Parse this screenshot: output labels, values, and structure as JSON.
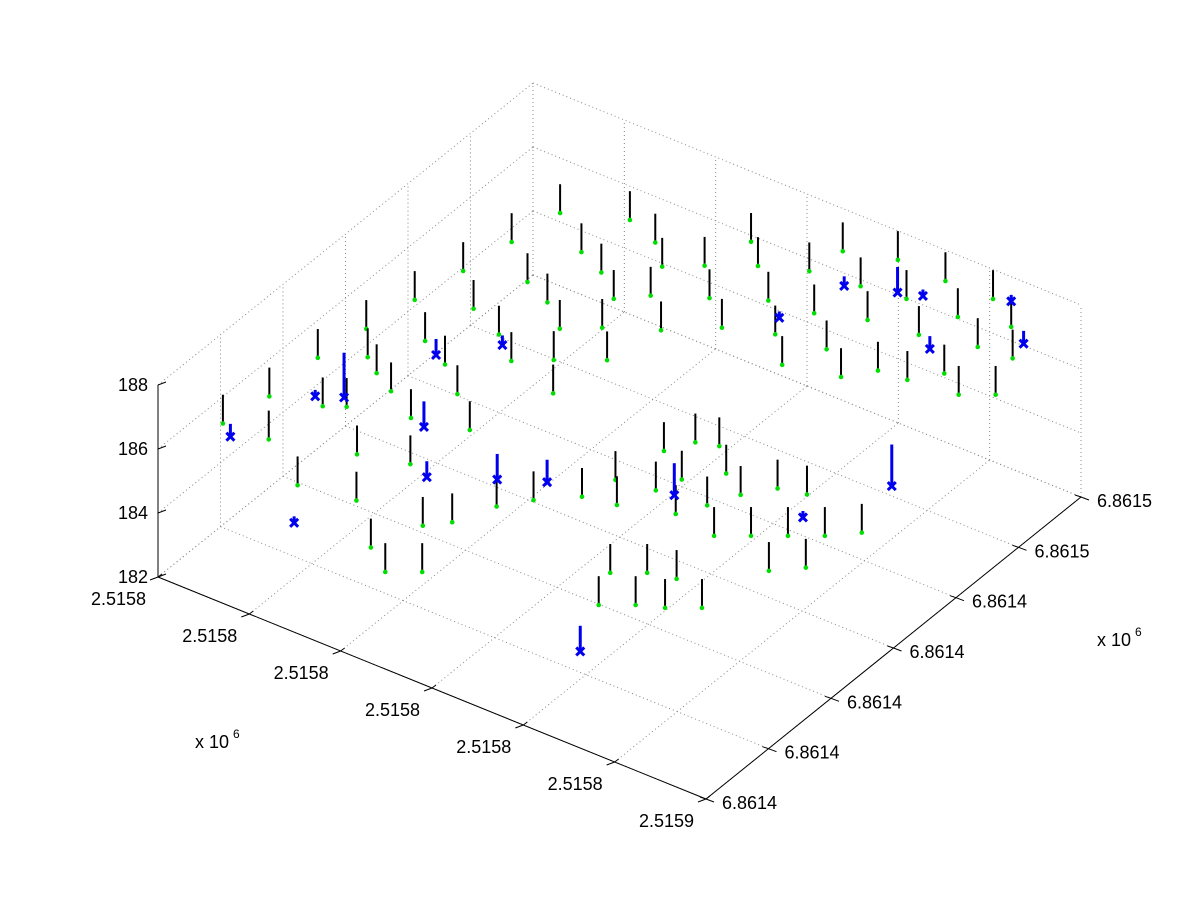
{
  "chart_data": {
    "type": "scatter",
    "title": "",
    "axes": {
      "x": {
        "ticks": [
          "2.5158",
          "2.5158",
          "2.5158",
          "2.5158",
          "2.5158",
          "2.5158",
          "2.5159"
        ],
        "multiplier_base": "x 10",
        "multiplier_exp": "6"
      },
      "y": {
        "ticks": [
          "6.8614",
          "6.8614",
          "6.8614",
          "6.8614",
          "6.8614",
          "6.8615",
          "6.8615"
        ],
        "multiplier_base": "x 10",
        "multiplier_exp": "6"
      },
      "z": {
        "ticks": [
          "182",
          "184",
          "186",
          "188"
        ],
        "range": [
          182,
          188
        ]
      }
    },
    "grid": true,
    "colors": {
      "stem": "#000000",
      "point": "#00dd00",
      "outlier": "#0000ee"
    },
    "series": [
      {
        "marker": "green-dot",
        "points_uv": [
          [
            0.05,
            0.1,
            186.2
          ],
          [
            0.08,
            0.18,
            186.5
          ],
          [
            0.1,
            0.28,
            186.9
          ],
          [
            0.12,
            0.38,
            187.0
          ],
          [
            0.14,
            0.48,
            187.1
          ],
          [
            0.16,
            0.58,
            187.2
          ],
          [
            0.18,
            0.68,
            187.3
          ],
          [
            0.2,
            0.78,
            187.4
          ],
          [
            0.12,
            0.12,
            186.0
          ],
          [
            0.15,
            0.22,
            186.3
          ],
          [
            0.18,
            0.32,
            186.6
          ],
          [
            0.2,
            0.42,
            186.8
          ],
          [
            0.22,
            0.52,
            187.0
          ],
          [
            0.25,
            0.62,
            187.1
          ],
          [
            0.28,
            0.72,
            187.3
          ],
          [
            0.3,
            0.82,
            187.5
          ],
          [
            0.2,
            0.08,
            185.5
          ],
          [
            0.24,
            0.18,
            185.8
          ],
          [
            0.27,
            0.28,
            186.2
          ],
          [
            0.3,
            0.36,
            186.4
          ],
          [
            0.33,
            0.46,
            186.7
          ],
          [
            0.35,
            0.56,
            186.9
          ],
          [
            0.38,
            0.66,
            187.1
          ],
          [
            0.4,
            0.76,
            187.3
          ],
          [
            0.28,
            0.12,
            185.2
          ],
          [
            0.31,
            0.22,
            185.6
          ],
          [
            0.35,
            0.32,
            186.0
          ],
          [
            0.42,
            0.44,
            186.5
          ],
          [
            0.45,
            0.54,
            186.8
          ],
          [
            0.48,
            0.64,
            187.0
          ],
          [
            0.5,
            0.74,
            187.2
          ],
          [
            0.52,
            0.84,
            187.4
          ],
          [
            0.55,
            0.7,
            187.0
          ],
          [
            0.58,
            0.78,
            187.3
          ],
          [
            0.6,
            0.86,
            187.6
          ],
          [
            0.62,
            0.92,
            187.8
          ],
          [
            0.65,
            0.8,
            187.2
          ],
          [
            0.68,
            0.88,
            187.5
          ],
          [
            0.7,
            0.95,
            187.8
          ],
          [
            0.72,
            0.84,
            187.1
          ],
          [
            0.75,
            0.9,
            187.4
          ],
          [
            0.78,
            0.96,
            187.6
          ],
          [
            0.8,
            0.86,
            187.0
          ],
          [
            0.83,
            0.92,
            187.2
          ],
          [
            0.86,
            0.97,
            187.5
          ],
          [
            0.88,
            0.9,
            186.8
          ],
          [
            0.9,
            0.96,
            187.0
          ],
          [
            0.93,
            0.92,
            186.6
          ],
          [
            0.25,
            0.4,
            186.6
          ],
          [
            0.28,
            0.5,
            186.8
          ],
          [
            0.3,
            0.6,
            187.0
          ],
          [
            0.33,
            0.7,
            187.2
          ],
          [
            0.36,
            0.8,
            187.4
          ],
          [
            0.22,
            0.3,
            186.5
          ],
          [
            0.18,
            0.24,
            186.3
          ],
          [
            0.15,
            0.34,
            186.7
          ],
          [
            0.45,
            0.8,
            187.3
          ],
          [
            0.48,
            0.88,
            187.5
          ],
          [
            0.42,
            0.7,
            187.1
          ],
          [
            0.4,
            0.6,
            186.9
          ],
          [
            0.38,
            0.5,
            186.7
          ],
          [
            0.62,
            0.74,
            186.9
          ],
          [
            0.66,
            0.7,
            186.6
          ],
          [
            0.7,
            0.76,
            186.8
          ],
          [
            0.74,
            0.74,
            186.4
          ],
          [
            0.78,
            0.78,
            186.5
          ],
          [
            0.82,
            0.8,
            186.3
          ],
          [
            0.86,
            0.84,
            186.4
          ],
          [
            0.9,
            0.82,
            186.2
          ],
          [
            0.94,
            0.86,
            186.1
          ],
          [
            0.5,
            0.4,
            184.2
          ],
          [
            0.52,
            0.46,
            184.3
          ],
          [
            0.55,
            0.42,
            184.1
          ],
          [
            0.58,
            0.48,
            184.2
          ],
          [
            0.6,
            0.52,
            184.3
          ],
          [
            0.63,
            0.46,
            184.0
          ],
          [
            0.66,
            0.5,
            184.1
          ],
          [
            0.54,
            0.56,
            184.4
          ],
          [
            0.57,
            0.6,
            184.5
          ],
          [
            0.6,
            0.62,
            184.4
          ],
          [
            0.64,
            0.58,
            184.2
          ],
          [
            0.68,
            0.56,
            184.0
          ],
          [
            0.72,
            0.6,
            184.1
          ],
          [
            0.76,
            0.62,
            184.0
          ],
          [
            0.7,
            0.46,
            183.8
          ],
          [
            0.74,
            0.5,
            183.7
          ],
          [
            0.78,
            0.54,
            183.6
          ],
          [
            0.82,
            0.58,
            183.5
          ],
          [
            0.86,
            0.62,
            183.5
          ],
          [
            0.8,
            0.46,
            183.4
          ],
          [
            0.84,
            0.5,
            183.4
          ],
          [
            0.4,
            0.2,
            184.6
          ],
          [
            0.44,
            0.26,
            184.8
          ],
          [
            0.48,
            0.3,
            184.9
          ],
          [
            0.36,
            0.18,
            184.4
          ],
          [
            0.32,
            0.1,
            184.2
          ],
          [
            0.36,
            0.08,
            183.9
          ],
          [
            0.4,
            0.12,
            183.8
          ],
          [
            0.62,
            0.3,
            183.6
          ],
          [
            0.66,
            0.34,
            183.5
          ],
          [
            0.7,
            0.36,
            183.4
          ],
          [
            0.64,
            0.24,
            183.3
          ],
          [
            0.68,
            0.28,
            183.2
          ],
          [
            0.72,
            0.3,
            183.2
          ],
          [
            0.76,
            0.34,
            183.1
          ]
        ]
      },
      {
        "marker": "blue-x",
        "points_uv": [
          [
            0.05,
            0.12,
            185.6,
            186.0
          ],
          [
            0.15,
            0.2,
            186.8,
            187.0
          ],
          [
            0.1,
            0.35,
            185.0,
            186.4
          ],
          [
            0.22,
            0.42,
            186.5,
            187.0
          ],
          [
            0.3,
            0.48,
            186.8,
            187.1
          ],
          [
            0.18,
            0.1,
            184.0,
            184.2
          ],
          [
            0.28,
            0.3,
            185.8,
            186.6
          ],
          [
            0.4,
            0.32,
            184.8,
            185.6
          ],
          [
            0.45,
            0.38,
            184.5,
            185.2
          ],
          [
            0.34,
            0.22,
            185.4,
            185.9
          ],
          [
            0.6,
            0.78,
            186.9,
            187.1
          ],
          [
            0.65,
            0.88,
            187.3,
            187.6
          ],
          [
            0.72,
            0.92,
            187.2,
            188.0
          ],
          [
            0.78,
            0.9,
            187.7,
            187.9
          ],
          [
            0.82,
            0.86,
            186.7,
            187.1
          ],
          [
            0.9,
            0.96,
            187.8,
            188.0
          ],
          [
            0.95,
            0.92,
            187.2,
            187.6
          ],
          [
            0.6,
            0.5,
            184.0,
            185.0
          ],
          [
            0.78,
            0.58,
            183.8,
            184.0
          ],
          [
            0.86,
            0.7,
            184.2,
            185.5
          ],
          [
            0.62,
            0.22,
            181.9,
            182.7
          ]
        ]
      }
    ]
  }
}
